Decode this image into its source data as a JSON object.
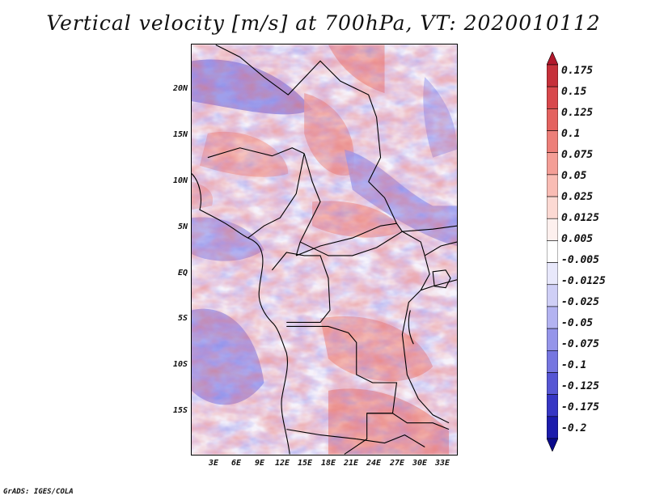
{
  "title": "Vertical velocity [m/s] at 700hPa, VT: 2020010112",
  "credit": "GrADS: IGES/COLA",
  "map": {
    "lat_ticks": [
      "20N",
      "15N",
      "10N",
      "5N",
      "EQ",
      "5S",
      "10S",
      "15S"
    ],
    "lon_ticks": [
      "3E",
      "6E",
      "9E",
      "12E",
      "15E",
      "18E",
      "21E",
      "24E",
      "27E",
      "30E",
      "33E"
    ],
    "lat_range": [
      "20S",
      "25N"
    ],
    "lon_range": [
      "0E",
      "35E"
    ]
  },
  "colorbar": {
    "labels": [
      "0.175",
      "0.15",
      "0.125",
      "0.1",
      "0.075",
      "0.05",
      "0.025",
      "0.0125",
      "0.005",
      "-0.005",
      "-0.0125",
      "-0.025",
      "-0.05",
      "-0.075",
      "-0.1",
      "-0.125",
      "-0.175",
      "-0.2"
    ],
    "colors": [
      "#b2182b",
      "#c6303a",
      "#d8484c",
      "#e4625f",
      "#ed7f79",
      "#f49e96",
      "#f9bcb4",
      "#fcd9d3",
      "#fdf0ee",
      "#ffffff",
      "#e8e8fb",
      "#cfcff6",
      "#b3b3f1",
      "#9595ea",
      "#7676e0",
      "#5656d4",
      "#3636c4",
      "#1c1cac",
      "#0a0a8c"
    ]
  },
  "colors": {
    "positive": "#e06060",
    "negative": "#6b6bdf",
    "boundary": "#000000"
  }
}
